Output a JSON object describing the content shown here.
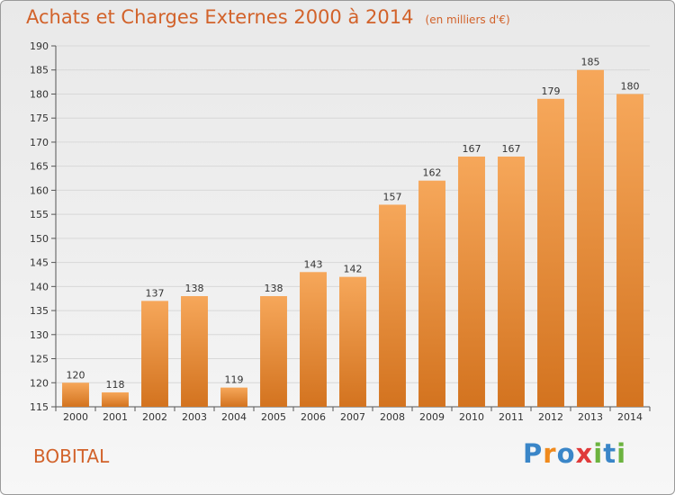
{
  "chart_data": {
    "type": "bar",
    "title": "Achats et Charges Externes 2000 à 2014",
    "subtitle": "(en milliers d'€)",
    "categories": [
      "2000",
      "2001",
      "2002",
      "2003",
      "2004",
      "2005",
      "2006",
      "2007",
      "2008",
      "2009",
      "2010",
      "2011",
      "2012",
      "2013",
      "2014"
    ],
    "values": [
      120,
      118,
      137,
      138,
      119,
      138,
      143,
      142,
      157,
      162,
      167,
      167,
      179,
      185,
      180
    ],
    "ylim": [
      115,
      190
    ],
    "yticks": [
      115,
      120,
      125,
      130,
      135,
      140,
      145,
      150,
      155,
      160,
      165,
      170,
      175,
      180,
      185,
      190
    ],
    "grid": true,
    "bar_color": "#f0913d",
    "label": "BOBITAL"
  },
  "logo": {
    "text": "Proxiti",
    "letters": [
      {
        "char": "P",
        "color": "#3a86c8"
      },
      {
        "char": "r",
        "color": "#f08a1c"
      },
      {
        "char": "o",
        "color": "#3a86c8"
      },
      {
        "char": "x",
        "color": "#e03a3a"
      },
      {
        "char": "i",
        "color": "#6cb33f"
      },
      {
        "char": "t",
        "color": "#3a86c8"
      },
      {
        "char": "i",
        "color": "#6cb33f"
      }
    ]
  }
}
